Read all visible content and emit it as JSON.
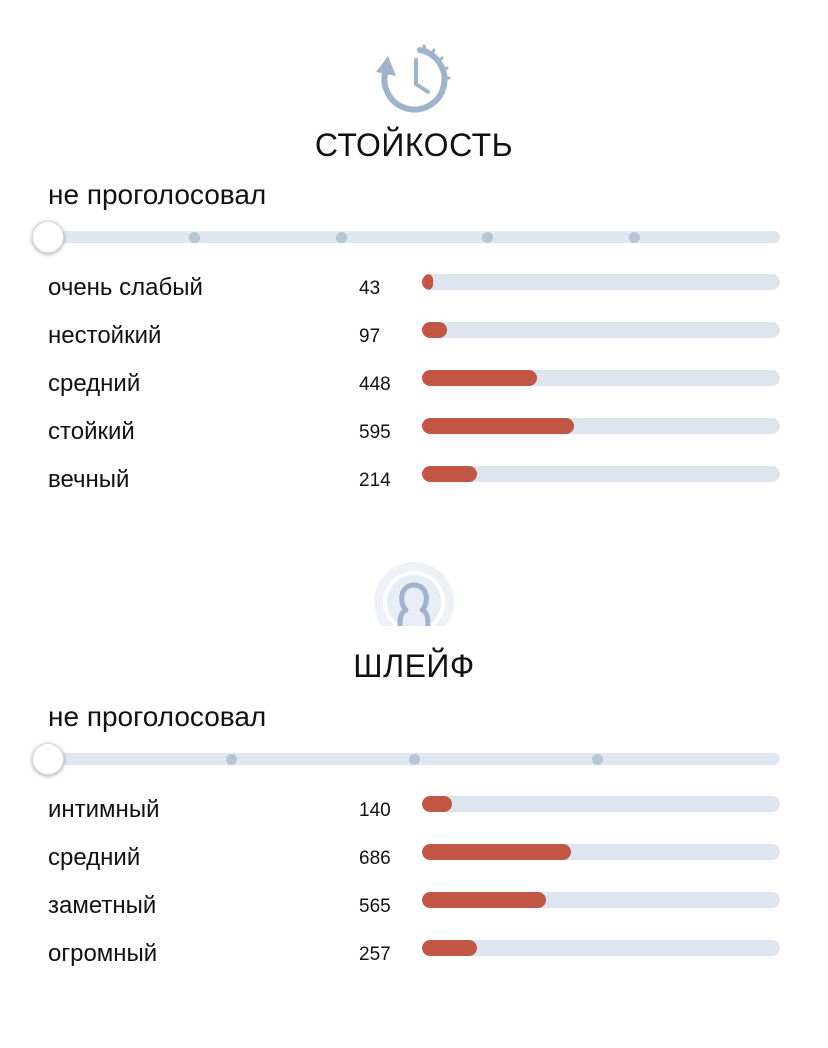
{
  "colors": {
    "accent_bar": "#c15645",
    "track": "#dde6f0",
    "icon": "#9fb4cc"
  },
  "longevity": {
    "icon": "clock-refresh-icon",
    "title": "СТОЙКОСТЬ",
    "status": "не проголосовал",
    "slider": {
      "stops": 6,
      "selected_index": 0
    },
    "rows": [
      {
        "label": "очень слабый",
        "count": "43",
        "fill": 0.03
      },
      {
        "label": "нестойкий",
        "count": "97",
        "fill": 0.07
      },
      {
        "label": "средний",
        "count": "448",
        "fill": 0.32
      },
      {
        "label": "стойкий",
        "count": "595",
        "fill": 0.425
      },
      {
        "label": "вечный",
        "count": "214",
        "fill": 0.155
      }
    ]
  },
  "sillage": {
    "icon": "person-aura-icon",
    "title": "ШЛЕЙФ",
    "status": "не проголосовал",
    "slider": {
      "stops": 5,
      "selected_index": 0
    },
    "rows": [
      {
        "label": "интимный",
        "count": "140",
        "fill": 0.085
      },
      {
        "label": "средний",
        "count": "686",
        "fill": 0.415
      },
      {
        "label": "заметный",
        "count": "565",
        "fill": 0.345
      },
      {
        "label": "огромный",
        "count": "257",
        "fill": 0.155
      }
    ]
  }
}
